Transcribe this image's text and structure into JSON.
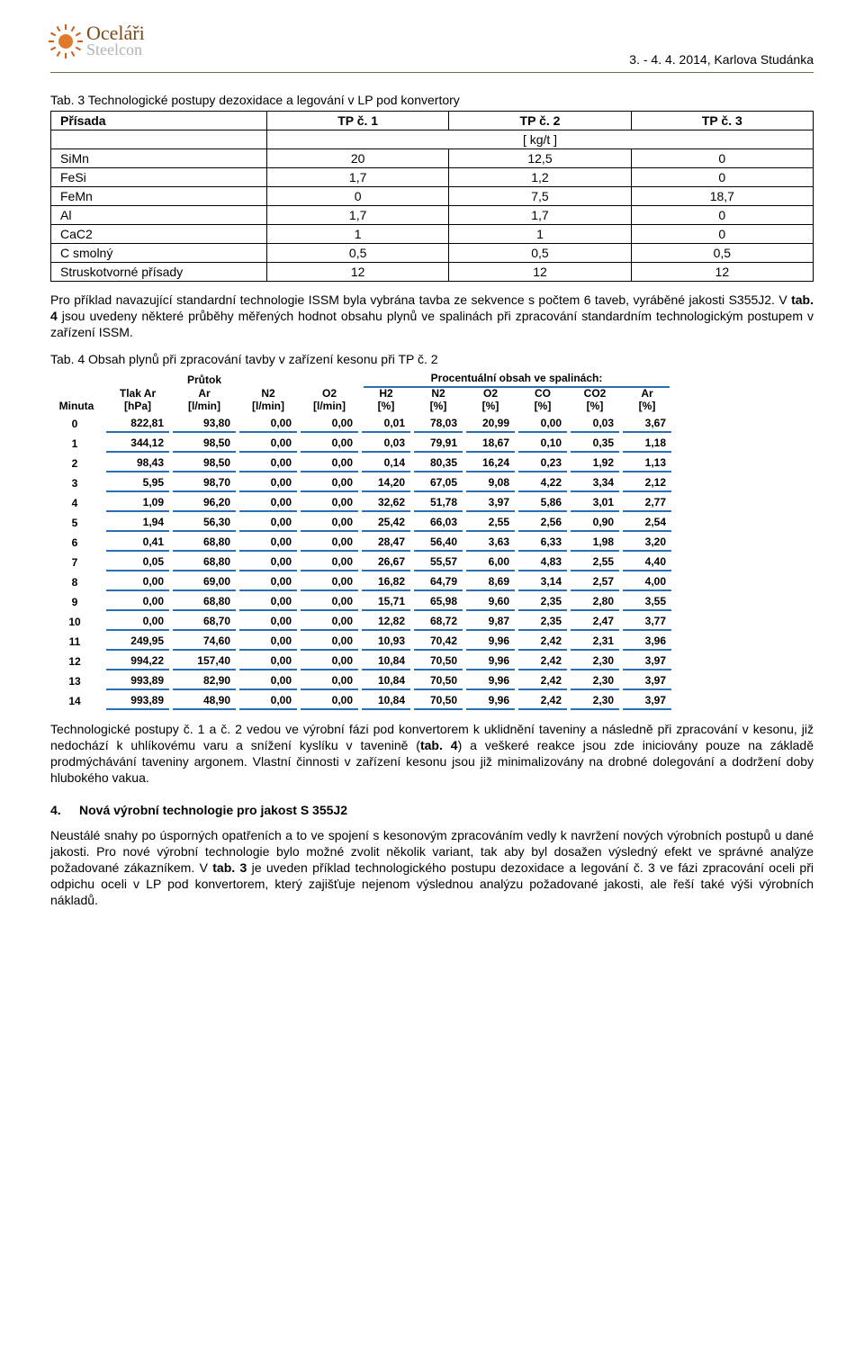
{
  "header": {
    "brand_line1": "Oceláři",
    "brand_line2": "Steelcon",
    "date_location": "3. - 4. 4. 2014, Karlova Studánka"
  },
  "tab3": {
    "title": "Tab. 3 Technologické postupy dezoxidace a legování v LP pod konvertory",
    "col_headers": [
      "Přísada",
      "TP č. 1",
      "TP č. 2",
      "TP č. 3"
    ],
    "unit_row": "[ kg/t ]",
    "rows": [
      {
        "name": "SiMn",
        "v": [
          "20",
          "12,5",
          "0"
        ]
      },
      {
        "name": "FeSi",
        "v": [
          "1,7",
          "1,2",
          "0"
        ]
      },
      {
        "name": "FeMn",
        "v": [
          "0",
          "7,5",
          "18,7"
        ]
      },
      {
        "name": "Al",
        "v": [
          "1,7",
          "1,7",
          "0"
        ]
      },
      {
        "name": "CaC2",
        "v": [
          "1",
          "1",
          "0"
        ]
      },
      {
        "name": "C smolný",
        "v": [
          "0,5",
          "0,5",
          "0,5"
        ]
      },
      {
        "name": "Struskotvorné přísady",
        "v": [
          "12",
          "12",
          "12"
        ]
      }
    ]
  },
  "para1": {
    "pre": "Pro příklad navazující standardní technologie ISSM byla vybrána tavba ze sekvence s počtem 6 taveb, vyráběné jakosti S355J2. V ",
    "bold": "tab. 4",
    "post": " jsou uvedeny některé průběhy měřených hodnot obsahu plynů ve spalinách při zpracování standardním technologickým postupem v zařízení ISSM."
  },
  "tab4_title": "Tab. 4 Obsah plynů při zpracování tavby v zařízení kesonu při TP č. 2",
  "gas": {
    "group_labels": {
      "flow": "Průtok",
      "pct": "Procentuální obsah ve spalinách:"
    },
    "columns": [
      {
        "l1": "",
        "l2": "Minuta"
      },
      {
        "l1": "Tlak Ar",
        "l2": "[hPa]"
      },
      {
        "l1": "Ar",
        "l2": "[l/min]"
      },
      {
        "l1": "N2",
        "l2": "[l/min]"
      },
      {
        "l1": "O2",
        "l2": "[l/min]"
      },
      {
        "l1": "H2",
        "l2": "[%]"
      },
      {
        "l1": "N2",
        "l2": "[%]"
      },
      {
        "l1": "O2",
        "l2": "[%]"
      },
      {
        "l1": "CO",
        "l2": "[%]"
      },
      {
        "l1": "CO2",
        "l2": "[%]"
      },
      {
        "l1": "Ar",
        "l2": "[%]"
      }
    ],
    "rows": [
      [
        "0",
        "822,81",
        "93,80",
        "0,00",
        "0,00",
        "0,01",
        "78,03",
        "20,99",
        "0,00",
        "0,03",
        "3,67"
      ],
      [
        "1",
        "344,12",
        "98,50",
        "0,00",
        "0,00",
        "0,03",
        "79,91",
        "18,67",
        "0,10",
        "0,35",
        "1,18"
      ],
      [
        "2",
        "98,43",
        "98,50",
        "0,00",
        "0,00",
        "0,14",
        "80,35",
        "16,24",
        "0,23",
        "1,92",
        "1,13"
      ],
      [
        "3",
        "5,95",
        "98,70",
        "0,00",
        "0,00",
        "14,20",
        "67,05",
        "9,08",
        "4,22",
        "3,34",
        "2,12"
      ],
      [
        "4",
        "1,09",
        "96,20",
        "0,00",
        "0,00",
        "32,62",
        "51,78",
        "3,97",
        "5,86",
        "3,01",
        "2,77"
      ],
      [
        "5",
        "1,94",
        "56,30",
        "0,00",
        "0,00",
        "25,42",
        "66,03",
        "2,55",
        "2,56",
        "0,90",
        "2,54"
      ],
      [
        "6",
        "0,41",
        "68,80",
        "0,00",
        "0,00",
        "28,47",
        "56,40",
        "3,63",
        "6,33",
        "1,98",
        "3,20"
      ],
      [
        "7",
        "0,05",
        "68,80",
        "0,00",
        "0,00",
        "26,67",
        "55,57",
        "6,00",
        "4,83",
        "2,55",
        "4,40"
      ],
      [
        "8",
        "0,00",
        "69,00",
        "0,00",
        "0,00",
        "16,82",
        "64,79",
        "8,69",
        "3,14",
        "2,57",
        "4,00"
      ],
      [
        "9",
        "0,00",
        "68,80",
        "0,00",
        "0,00",
        "15,71",
        "65,98",
        "9,60",
        "2,35",
        "2,80",
        "3,55"
      ],
      [
        "10",
        "0,00",
        "68,70",
        "0,00",
        "0,00",
        "12,82",
        "68,72",
        "9,87",
        "2,35",
        "2,47",
        "3,77"
      ],
      [
        "11",
        "249,95",
        "74,60",
        "0,00",
        "0,00",
        "10,93",
        "70,42",
        "9,96",
        "2,42",
        "2,31",
        "3,96"
      ],
      [
        "12",
        "994,22",
        "157,40",
        "0,00",
        "0,00",
        "10,84",
        "70,50",
        "9,96",
        "2,42",
        "2,30",
        "3,97"
      ],
      [
        "13",
        "993,89",
        "82,90",
        "0,00",
        "0,00",
        "10,84",
        "70,50",
        "9,96",
        "2,42",
        "2,30",
        "3,97"
      ],
      [
        "14",
        "993,89",
        "48,90",
        "0,00",
        "0,00",
        "10,84",
        "70,50",
        "9,96",
        "2,42",
        "2,30",
        "3,97"
      ]
    ],
    "colors": {
      "underline": "#2a6fb5",
      "text": "#000000"
    }
  },
  "para2": {
    "pre": "Technologické postupy č. 1 a č. 2 vedou ve výrobní fázi pod konvertorem k uklidnění taveniny a následně při zpracování v kesonu, již nedochází k uhlíkovému varu a snížení kyslíku v tavenině (",
    "bold": "tab. 4",
    "post": ") a veškeré reakce jsou zde iniciovány pouze na základě prodmýchávání taveniny argonem. Vlastní činnosti v zařízení kesonu jsou již minimalizovány na drobné dolegování a dodržení doby hlubokého vakua."
  },
  "section4": {
    "num": "4.",
    "title": "Nová výrobní technologie pro jakost S 355J2"
  },
  "para3": {
    "pre": "Neustálé snahy po úsporných opatřeních a to ve spojení s kesonovým zpracováním vedly k navržení nových výrobních postupů u dané jakosti. Pro nové výrobní technologie bylo možné zvolit několik variant, tak aby byl dosažen výsledný efekt ve správné analýze požadované zákazníkem. V ",
    "bold": "tab. 3",
    "post": " je uveden příklad technologického postupu dezoxidace a legování č. 3 ve fázi zpracování oceli při odpichu oceli v LP pod konvertorem, který zajišťuje nejenom výslednou analýzu požadované jakosti, ale řeší také výši výrobních nákladů."
  }
}
